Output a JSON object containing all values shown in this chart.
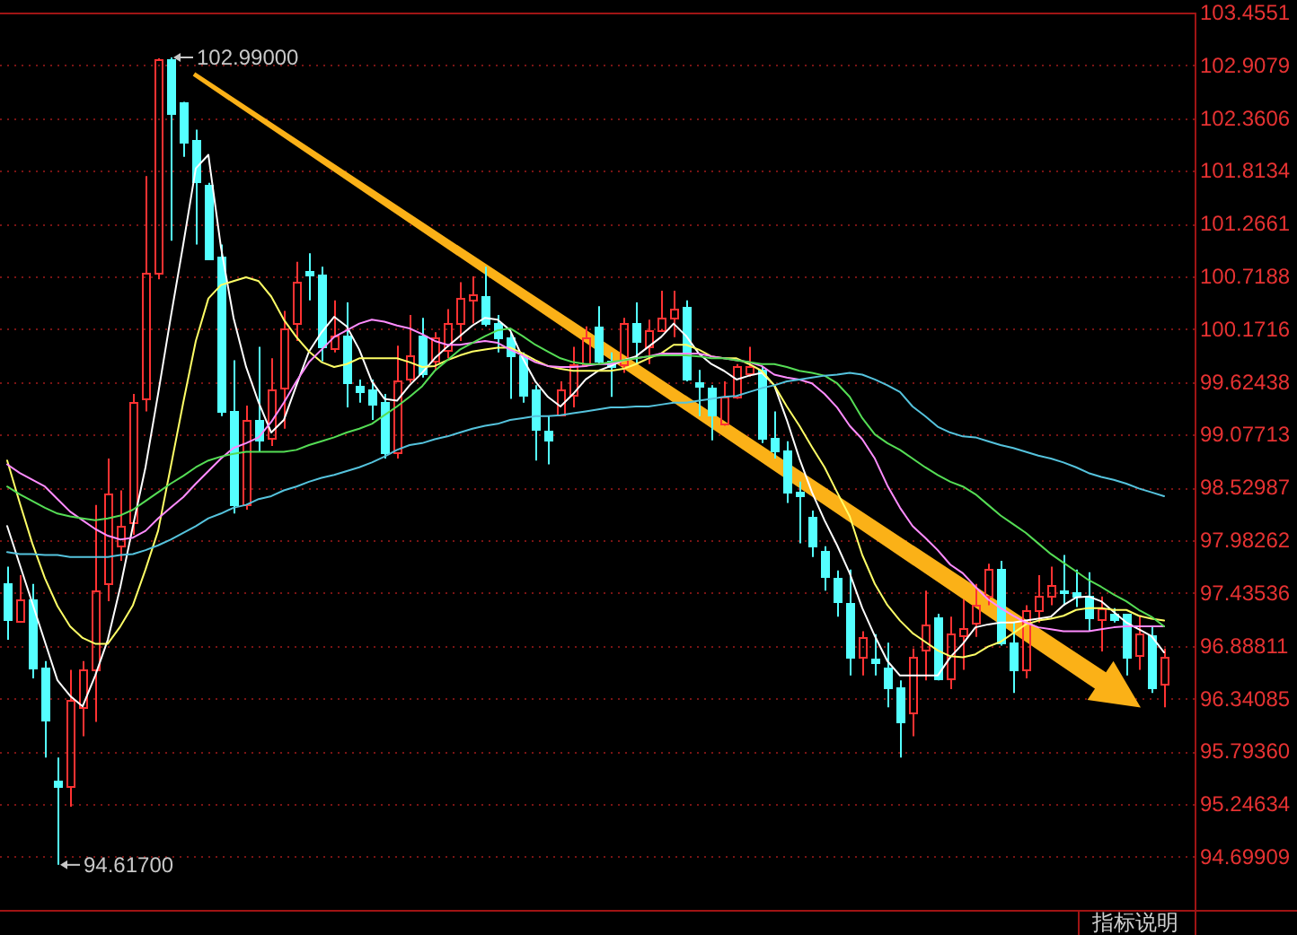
{
  "chart_data": {
    "type": "candlestick",
    "categories": [
      null,
      null,
      null,
      null,
      null,
      null,
      null,
      null,
      null,
      null,
      null,
      null,
      null,
      null,
      null,
      null,
      null,
      null,
      null,
      null,
      null,
      null,
      null,
      null,
      null,
      null,
      null,
      null,
      null,
      null,
      null,
      null,
      null,
      null,
      null,
      null,
      null,
      null,
      null,
      null,
      null,
      null,
      null,
      null,
      null,
      null,
      null,
      null,
      null,
      null,
      null,
      null,
      null,
      null,
      null,
      null,
      null,
      null,
      null,
      null,
      null,
      null,
      null,
      null,
      null,
      null,
      null,
      null,
      null,
      null,
      null,
      null,
      null,
      null,
      null,
      null,
      null,
      null,
      null,
      null,
      null,
      null,
      null,
      null,
      null,
      null,
      null,
      null,
      null,
      null,
      null,
      null,
      null
    ],
    "ohlc": [
      [
        97.53,
        97.71,
        96.95,
        97.17
      ],
      [
        97.14,
        97.62,
        97.13,
        97.37
      ],
      [
        97.37,
        97.53,
        96.55,
        96.67
      ],
      [
        96.66,
        96.73,
        95.73,
        96.13
      ],
      [
        95.49,
        95.73,
        94.617,
        95.43
      ],
      [
        95.43,
        96.64,
        95.22,
        96.32
      ],
      [
        96.25,
        96.73,
        95.95,
        96.64
      ],
      [
        96.64,
        98.35,
        96.1,
        97.46
      ],
      [
        97.53,
        98.83,
        97.35,
        98.47
      ],
      [
        97.92,
        98.5,
        97.77,
        98.13
      ],
      [
        98.17,
        99.5,
        98.04,
        99.41
      ],
      [
        99.45,
        101.76,
        99.32,
        100.76
      ],
      [
        100.75,
        102.98,
        100.69,
        102.98
      ],
      [
        102.98,
        102.99,
        101.09,
        102.42
      ],
      [
        102.53,
        102.53,
        101.96,
        102.12
      ],
      [
        102.13,
        102.24,
        101.05,
        101.7
      ],
      [
        101.67,
        101.69,
        100.9,
        100.91
      ],
      [
        100.93,
        101.05,
        99.27,
        99.32
      ],
      [
        99.32,
        99.85,
        98.26,
        98.35
      ],
      [
        98.35,
        99.38,
        98.3,
        99.23
      ],
      [
        99.23,
        99.99,
        98.9,
        99.02
      ],
      [
        99.05,
        99.87,
        98.96,
        99.54
      ],
      [
        99.56,
        100.36,
        99.14,
        100.18
      ],
      [
        100.23,
        100.87,
        100.05,
        100.66
      ],
      [
        100.78,
        100.96,
        100.47,
        100.73
      ],
      [
        100.73,
        100.82,
        99.84,
        99.99
      ],
      [
        99.98,
        100.47,
        99.93,
        100.11
      ],
      [
        100.11,
        100.45,
        99.36,
        99.62
      ],
      [
        99.59,
        99.65,
        99.41,
        99.52
      ],
      [
        99.54,
        99.65,
        99.23,
        99.39
      ],
      [
        99.41,
        99.5,
        98.83,
        98.9
      ],
      [
        98.9,
        100.0,
        98.83,
        99.64
      ],
      [
        99.65,
        100.32,
        99.62,
        99.9
      ],
      [
        100.1,
        100.29,
        99.67,
        99.72
      ],
      [
        99.84,
        100.14,
        99.75,
        100.09
      ],
      [
        99.96,
        100.38,
        99.87,
        100.23
      ],
      [
        100.23,
        100.66,
        100.05,
        100.49
      ],
      [
        100.47,
        100.72,
        100.23,
        100.54
      ],
      [
        100.51,
        100.82,
        100.2,
        100.23
      ],
      [
        100.23,
        100.32,
        99.93,
        100.09
      ],
      [
        100.09,
        100.14,
        99.45,
        99.9
      ],
      [
        99.9,
        99.93,
        99.41,
        99.5
      ],
      [
        99.54,
        99.59,
        98.81,
        99.14
      ],
      [
        99.11,
        99.27,
        98.77,
        99.03
      ],
      [
        99.29,
        99.63,
        99.27,
        99.54
      ],
      [
        99.5,
        99.99,
        99.36,
        99.81
      ],
      [
        99.81,
        100.2,
        99.78,
        100.09
      ],
      [
        100.2,
        100.41,
        99.81,
        99.84
      ],
      [
        99.84,
        99.93,
        99.47,
        99.78
      ],
      [
        99.81,
        100.29,
        99.72,
        100.23
      ],
      [
        100.23,
        100.45,
        99.81,
        100.05
      ],
      [
        99.99,
        100.27,
        99.81,
        100.17
      ],
      [
        100.17,
        100.57,
        100.17,
        100.29
      ],
      [
        100.29,
        100.57,
        100.09,
        100.38
      ],
      [
        100.41,
        100.47,
        99.63,
        99.65
      ],
      [
        99.63,
        99.75,
        99.27,
        99.58
      ],
      [
        99.56,
        99.59,
        99.02,
        99.29
      ],
      [
        99.2,
        99.63,
        99.17,
        99.47
      ],
      [
        99.47,
        99.81,
        99.45,
        99.78
      ],
      [
        99.72,
        99.99,
        99.68,
        99.78
      ],
      [
        99.75,
        99.78,
        98.99,
        99.05
      ],
      [
        99.04,
        99.32,
        98.83,
        98.92
      ],
      [
        98.92,
        99.01,
        98.37,
        98.48
      ],
      [
        98.48,
        98.59,
        97.95,
        98.44
      ],
      [
        98.23,
        98.29,
        97.81,
        97.92
      ],
      [
        97.88,
        97.92,
        97.46,
        97.61
      ],
      [
        97.59,
        97.67,
        97.19,
        97.35
      ],
      [
        97.33,
        97.68,
        96.58,
        96.77
      ],
      [
        96.77,
        97.04,
        96.58,
        96.97
      ],
      [
        96.75,
        97.01,
        96.58,
        96.72
      ],
      [
        96.66,
        96.92,
        96.25,
        96.46
      ],
      [
        96.46,
        96.53,
        95.73,
        96.1
      ],
      [
        96.19,
        96.86,
        95.95,
        96.77
      ],
      [
        96.84,
        97.46,
        96.53,
        97.1
      ],
      [
        97.19,
        97.22,
        96.53,
        96.55
      ],
      [
        96.55,
        97.19,
        96.44,
        97.01
      ],
      [
        96.99,
        97.37,
        96.64,
        97.08
      ],
      [
        97.13,
        97.53,
        96.98,
        97.31
      ],
      [
        97.4,
        97.74,
        97.31,
        97.68
      ],
      [
        97.68,
        97.77,
        96.89,
        96.92
      ],
      [
        96.92,
        97.13,
        96.4,
        96.64
      ],
      [
        96.64,
        97.31,
        96.55,
        97.26
      ],
      [
        97.26,
        97.62,
        97.13,
        97.4
      ],
      [
        97.4,
        97.71,
        97.31,
        97.51
      ],
      [
        97.47,
        97.83,
        97.31,
        97.45
      ],
      [
        97.45,
        97.68,
        97.29,
        97.4
      ],
      [
        97.4,
        97.65,
        97.04,
        97.19
      ],
      [
        97.16,
        97.4,
        96.83,
        97.28
      ],
      [
        97.22,
        97.28,
        97.13,
        97.16
      ],
      [
        97.22,
        97.22,
        96.58,
        96.77
      ],
      [
        96.8,
        97.19,
        96.64,
        97.01
      ],
      [
        96.99,
        97.1,
        96.4,
        96.46
      ],
      [
        96.49,
        96.86,
        96.25,
        96.77
      ]
    ],
    "colors": [
      "#54ffff",
      "#ff3232",
      "#54ffff",
      "#54ffff",
      "#54ffff",
      "#ff3232",
      "#ff3232",
      "#ff3232",
      "#ff3232",
      "#ff3232",
      "#ff3232",
      "#ff3232",
      "#ff3232",
      "#54ffff",
      "#54ffff",
      "#54ffff",
      "#54ffff",
      "#54ffff",
      "#54ffff",
      "#ff3232",
      "#54ffff",
      "#ff3232",
      "#ff3232",
      "#ff3232",
      "#54ffff",
      "#54ffff",
      "#ff3232",
      "#54ffff",
      "#54ffff",
      "#54ffff",
      "#54ffff",
      "#ff3232",
      "#ff3232",
      "#54ffff",
      "#ff3232",
      "#ff3232",
      "#ff3232",
      "#ff3232",
      "#54ffff",
      "#54ffff",
      "#54ffff",
      "#54ffff",
      "#54ffff",
      "#54ffff",
      "#ff3232",
      "#ff3232",
      "#ff3232",
      "#54ffff",
      "#54ffff",
      "#ff3232",
      "#54ffff",
      "#ff3232",
      "#ff3232",
      "#ff3232",
      "#54ffff",
      "#54ffff",
      "#54ffff",
      "#ff3232",
      "#ff3232",
      "#ff3232",
      "#54ffff",
      "#54ffff",
      "#54ffff",
      "#54ffff",
      "#54ffff",
      "#54ffff",
      "#54ffff",
      "#54ffff",
      "#ff3232",
      "#54ffff",
      "#54ffff",
      "#54ffff",
      "#ff3232",
      "#ff3232",
      "#54ffff",
      "#ff3232",
      "#ff3232",
      "#ff3232",
      "#ff3232",
      "#54ffff",
      "#54ffff",
      "#ff3232",
      "#ff3232",
      "#ff3232",
      "#54ffff",
      "#54ffff",
      "#54ffff",
      "#ff3232",
      "#54ffff",
      "#54ffff",
      "#ff3232",
      "#54ffff",
      "#ff3232"
    ],
    "series": [
      {
        "type": "line",
        "color": "#ffffff",
        "values": [
          98.13,
          97.73,
          97.33,
          96.93,
          96.53,
          96.37,
          96.26,
          96.58,
          96.95,
          97.5,
          98.13,
          98.74,
          99.5,
          100.29,
          101.05,
          101.84,
          101.98,
          101.02,
          100.29,
          99.78,
          99.41,
          99.1,
          99.23,
          99.59,
          99.94,
          100.14,
          100.3,
          100.2,
          99.96,
          99.63,
          99.45,
          99.43,
          99.59,
          99.72,
          99.87,
          99.99,
          100.1,
          100.21,
          100.29,
          100.27,
          100.16,
          99.87,
          99.63,
          99.47,
          99.37,
          99.5,
          99.65,
          99.74,
          99.79,
          99.85,
          99.89,
          99.99,
          100.09,
          100.23,
          100.1,
          99.92,
          99.81,
          99.74,
          99.65,
          99.69,
          99.72,
          99.59,
          99.23,
          98.83,
          98.48,
          98.19,
          97.93,
          97.64,
          97.28,
          96.99,
          96.73,
          96.58,
          96.58,
          96.58,
          96.58,
          96.77,
          96.91,
          97.08,
          97.11,
          97.13,
          97.13,
          97.15,
          97.17,
          97.19,
          97.31,
          97.39,
          97.4,
          97.35,
          97.24,
          97.13,
          97.06,
          96.99,
          96.82
        ]
      },
      {
        "type": "line",
        "color": "#ffff66",
        "values": [
          98.81,
          98.37,
          97.95,
          97.59,
          97.3,
          97.09,
          96.97,
          96.91,
          96.91,
          97.09,
          97.31,
          97.68,
          98.08,
          98.74,
          99.41,
          100.05,
          100.49,
          100.63,
          100.67,
          100.71,
          100.67,
          100.51,
          100.27,
          100.09,
          99.94,
          99.83,
          99.78,
          99.81,
          99.87,
          99.87,
          99.87,
          99.87,
          99.83,
          99.78,
          99.79,
          99.85,
          99.9,
          99.94,
          99.96,
          99.98,
          99.98,
          99.92,
          99.85,
          99.79,
          99.76,
          99.74,
          99.74,
          99.74,
          99.74,
          99.76,
          99.81,
          99.87,
          99.92,
          100.01,
          100.01,
          99.96,
          99.89,
          99.87,
          99.87,
          99.81,
          99.74,
          99.59,
          99.37,
          99.17,
          98.95,
          98.74,
          98.48,
          98.23,
          97.83,
          97.53,
          97.31,
          97.15,
          97.02,
          96.93,
          96.84,
          96.78,
          96.77,
          96.8,
          96.88,
          96.93,
          97.02,
          97.11,
          97.15,
          97.17,
          97.2,
          97.26,
          97.28,
          97.28,
          97.26,
          97.26,
          97.2,
          97.17,
          97.15
        ]
      },
      {
        "type": "line",
        "color": "#ff8cff",
        "values": [
          98.77,
          98.68,
          98.61,
          98.54,
          98.41,
          98.28,
          98.19,
          98.1,
          98.03,
          97.99,
          98.01,
          98.08,
          98.21,
          98.32,
          98.43,
          98.57,
          98.7,
          98.83,
          98.94,
          98.99,
          99.05,
          99.21,
          99.41,
          99.63,
          99.83,
          99.96,
          100.09,
          100.16,
          100.23,
          100.27,
          100.25,
          100.21,
          100.18,
          100.12,
          100.05,
          100.01,
          100.01,
          100.03,
          100.05,
          100.03,
          99.96,
          99.9,
          99.83,
          99.79,
          99.78,
          99.78,
          99.79,
          99.81,
          99.81,
          99.85,
          99.87,
          99.89,
          99.92,
          99.92,
          99.92,
          99.92,
          99.89,
          99.87,
          99.85,
          99.83,
          99.79,
          99.7,
          99.67,
          99.65,
          99.61,
          99.5,
          99.36,
          99.17,
          99.03,
          98.83,
          98.55,
          98.32,
          98.13,
          98.01,
          97.88,
          97.73,
          97.64,
          97.5,
          97.37,
          97.28,
          97.2,
          97.13,
          97.08,
          97.06,
          97.04,
          97.04,
          97.04,
          97.06,
          97.08,
          97.09,
          97.09,
          97.09,
          97.09
        ]
      },
      {
        "type": "line",
        "color": "#55dd55",
        "values": [
          98.54,
          98.46,
          98.39,
          98.32,
          98.26,
          98.23,
          98.21,
          98.19,
          98.21,
          98.24,
          98.3,
          98.39,
          98.48,
          98.57,
          98.65,
          98.74,
          98.81,
          98.85,
          98.88,
          98.9,
          98.9,
          98.9,
          98.9,
          98.92,
          98.97,
          99.01,
          99.05,
          99.1,
          99.14,
          99.19,
          99.28,
          99.37,
          99.47,
          99.58,
          99.74,
          99.85,
          99.96,
          100.03,
          100.1,
          100.16,
          100.18,
          100.1,
          100.01,
          99.94,
          99.87,
          99.83,
          99.81,
          99.81,
          99.83,
          99.85,
          99.87,
          99.89,
          99.9,
          99.9,
          99.9,
          99.89,
          99.87,
          99.87,
          99.85,
          99.83,
          99.81,
          99.81,
          99.78,
          99.74,
          99.72,
          99.69,
          99.61,
          99.47,
          99.25,
          99.08,
          98.99,
          98.92,
          98.83,
          98.74,
          98.66,
          98.59,
          98.54,
          98.46,
          98.35,
          98.24,
          98.15,
          98.06,
          97.95,
          97.84,
          97.75,
          97.66,
          97.57,
          97.5,
          97.42,
          97.35,
          97.26,
          97.19,
          97.09
        ]
      },
      {
        "type": "line",
        "color": "#55c3dd",
        "values": [
          97.86,
          97.84,
          97.84,
          97.83,
          97.83,
          97.81,
          97.81,
          97.81,
          97.81,
          97.83,
          97.84,
          97.88,
          97.93,
          97.99,
          98.06,
          98.13,
          98.21,
          98.26,
          98.32,
          98.35,
          98.41,
          98.44,
          98.5,
          98.54,
          98.59,
          98.63,
          98.66,
          98.7,
          98.74,
          98.79,
          98.85,
          98.92,
          98.97,
          98.99,
          99.03,
          99.06,
          99.1,
          99.14,
          99.17,
          99.19,
          99.23,
          99.25,
          99.27,
          99.27,
          99.28,
          99.3,
          99.32,
          99.34,
          99.36,
          99.36,
          99.37,
          99.37,
          99.39,
          99.41,
          99.41,
          99.43,
          99.45,
          99.47,
          99.48,
          99.52,
          99.56,
          99.59,
          99.63,
          99.65,
          99.67,
          99.69,
          99.7,
          99.72,
          99.7,
          99.65,
          99.59,
          99.52,
          99.37,
          99.27,
          99.16,
          99.1,
          99.06,
          99.05,
          99.01,
          98.97,
          98.94,
          98.9,
          98.86,
          98.83,
          98.79,
          98.74,
          98.68,
          98.64,
          98.61,
          98.57,
          98.52,
          98.48,
          98.44
        ]
      }
    ],
    "ylim": [
      94.15,
      103.4551
    ],
    "yticks": [
      103.4551,
      102.9079,
      102.3606,
      101.8134,
      101.2661,
      100.7188,
      100.1716,
      99.62438,
      99.07713,
      98.52987,
      97.98262,
      97.43536,
      96.88811,
      96.34085,
      {
        "value": 95.7936,
        "label": "95.79360"
      },
      95.24634,
      94.69909
    ],
    "grid": "y",
    "tick_labels": "y",
    "annotations": [
      "102.99000",
      "94.61700",
      "指标说明"
    ]
  }
}
